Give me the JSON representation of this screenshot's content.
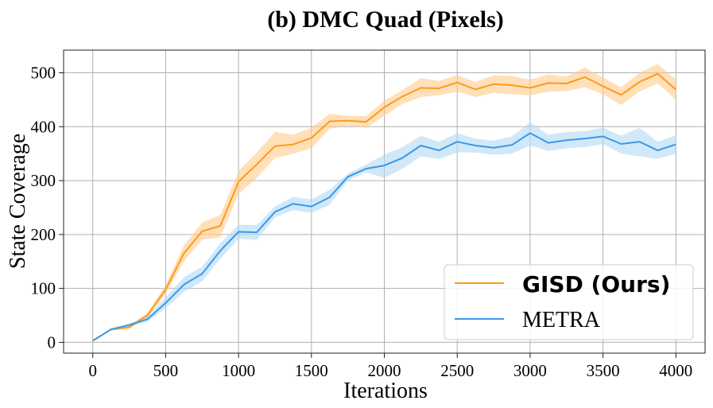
{
  "chart_data": {
    "type": "line",
    "title": "(b) DMC Quad (Pixels)",
    "xlabel": "Iterations",
    "ylabel": "State Coverage",
    "xlim": [
      -200,
      4200
    ],
    "ylim": [
      -20,
      542
    ],
    "xticks": [
      0,
      500,
      1000,
      1500,
      2000,
      2500,
      3000,
      3500,
      4000
    ],
    "xtick_labels": [
      "0",
      "500",
      "1000",
      "1500",
      "2000",
      "2500",
      "3000",
      "3500",
      "4000"
    ],
    "yticks": [
      0,
      100,
      200,
      300,
      400,
      500
    ],
    "ytick_labels": [
      "0",
      "100",
      "200",
      "300",
      "400",
      "500"
    ],
    "grid": true,
    "legend_position": "bottom-right",
    "series": [
      {
        "name": "GISD (Ours)",
        "color": "#ff9a1a",
        "band_color": "#ffcc8a",
        "x": [
          0,
          125,
          250,
          375,
          500,
          625,
          750,
          875,
          1000,
          1125,
          1250,
          1375,
          1500,
          1625,
          1750,
          1875,
          2000,
          2125,
          2250,
          2375,
          2500,
          2625,
          2750,
          2875,
          3000,
          3125,
          3250,
          3375,
          3500,
          3625,
          3750,
          3875,
          4000
        ],
        "values": [
          3,
          24,
          28,
          50,
          98,
          165,
          206,
          216,
          298,
          330,
          364,
          367,
          379,
          410,
          411,
          409,
          436,
          456,
          472,
          471,
          482,
          469,
          479,
          477,
          472,
          481,
          480,
          492,
          475,
          459,
          483,
          498,
          469
        ],
        "lower": [
          3,
          22,
          25,
          45,
          90,
          150,
          190,
          195,
          275,
          305,
          342,
          350,
          360,
          396,
          402,
          398,
          420,
          442,
          455,
          458,
          465,
          455,
          463,
          460,
          458,
          465,
          466,
          473,
          460,
          440,
          465,
          480,
          450
        ],
        "upper": [
          3,
          26,
          31,
          55,
          106,
          180,
          222,
          236,
          318,
          352,
          390,
          385,
          398,
          424,
          420,
          420,
          448,
          468,
          490,
          485,
          496,
          483,
          495,
          494,
          487,
          497,
          493,
          510,
          491,
          473,
          500,
          516,
          488
        ]
      },
      {
        "name": "METRA",
        "color": "#3a99e8",
        "band_color": "#b2d8f5",
        "x": [
          0,
          125,
          250,
          375,
          500,
          625,
          750,
          875,
          1000,
          1125,
          1250,
          1375,
          1500,
          1625,
          1750,
          1875,
          2000,
          2125,
          2250,
          2375,
          2500,
          2625,
          2750,
          2875,
          3000,
          3125,
          3250,
          3375,
          3500,
          3625,
          3750,
          3875,
          4000
        ],
        "values": [
          3,
          24,
          32,
          43,
          73,
          107,
          127,
          170,
          205,
          204,
          242,
          257,
          252,
          269,
          307,
          322,
          328,
          342,
          365,
          356,
          372,
          365,
          361,
          366,
          388,
          370,
          375,
          378,
          382,
          368,
          372,
          356,
          367
        ],
        "lower": [
          3,
          22,
          29,
          38,
          63,
          93,
          113,
          155,
          192,
          190,
          232,
          245,
          240,
          255,
          300,
          315,
          305,
          322,
          345,
          340,
          352,
          352,
          348,
          350,
          365,
          355,
          360,
          362,
          368,
          350,
          345,
          340,
          350
        ],
        "upper": [
          3,
          26,
          35,
          48,
          83,
          121,
          140,
          184,
          218,
          218,
          252,
          270,
          265,
          283,
          313,
          330,
          348,
          362,
          383,
          372,
          388,
          378,
          374,
          382,
          408,
          385,
          390,
          392,
          398,
          383,
          398,
          372,
          384
        ]
      }
    ]
  }
}
